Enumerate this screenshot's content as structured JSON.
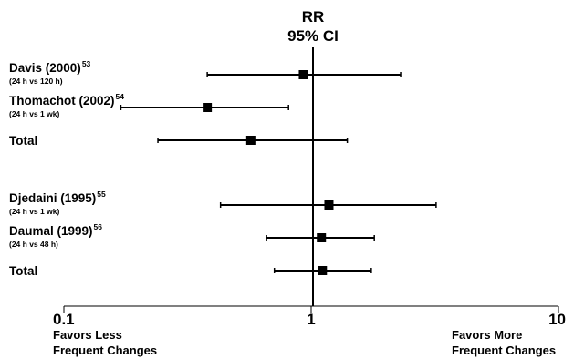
{
  "chart_data": {
    "type": "forest",
    "header": [
      "RR",
      "95% CI"
    ],
    "x_scale": "log",
    "xlim": [
      0.1,
      10
    ],
    "x_ticks": [
      "0.1",
      "1",
      "10"
    ],
    "reference_line": 1,
    "favors_left": [
      "Favors Less",
      "Frequent Changes"
    ],
    "favors_right": [
      "Favors More",
      "Frequent Changes"
    ],
    "rows": [
      {
        "label": "Davis (2000)",
        "ref": "53",
        "sub": "(24 h vs 120 h)",
        "rr": 0.93,
        "lo": 0.38,
        "hi": 2.3,
        "group": 1
      },
      {
        "label": "Thomachot (2002)",
        "ref": "54",
        "sub": "(24 h vs 1 wk)",
        "rr": 0.38,
        "lo": 0.17,
        "hi": 0.81,
        "group": 1
      },
      {
        "label": "Total",
        "ref": "",
        "sub": "",
        "rr": 0.57,
        "lo": 0.24,
        "hi": 1.4,
        "group": 1
      },
      {
        "label": "Djedaini (1995)",
        "ref": "55",
        "sub": "(24 h vs 1 wk)",
        "rr": 1.18,
        "lo": 0.43,
        "hi": 3.2,
        "group": 2
      },
      {
        "label": "Daumal (1999)",
        "ref": "56",
        "sub": "(24 h vs 48 h)",
        "rr": 1.1,
        "lo": 0.66,
        "hi": 1.8,
        "group": 2
      },
      {
        "label": "Total",
        "ref": "",
        "sub": "",
        "rr": 1.11,
        "lo": 0.71,
        "hi": 1.75,
        "group": 2
      }
    ]
  }
}
